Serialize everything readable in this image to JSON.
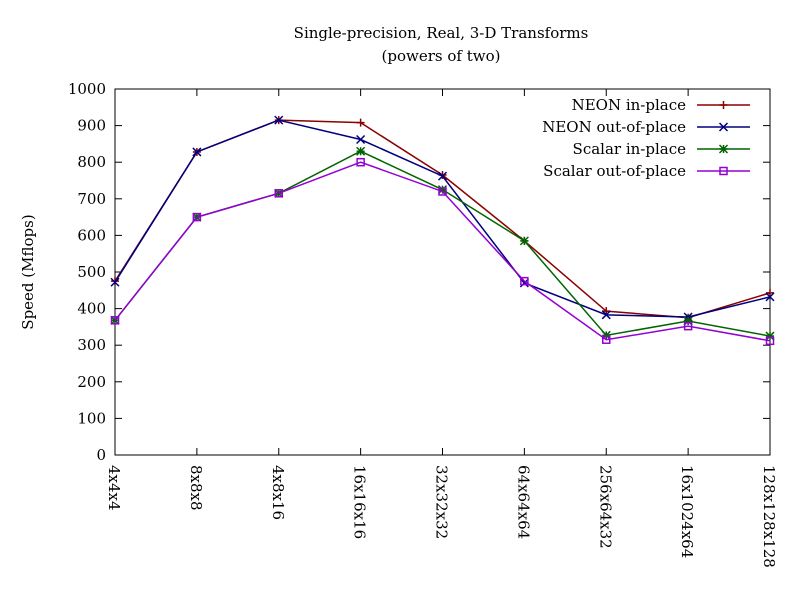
{
  "chart_data": {
    "type": "line",
    "title": "Single-precision, Real, 3-D Transforms",
    "subtitle": "(powers of two)",
    "xlabel": "",
    "ylabel": "Speed (Mflops)",
    "ylim": [
      0,
      1000
    ],
    "yticks": [
      0,
      100,
      200,
      300,
      400,
      500,
      600,
      700,
      800,
      900,
      1000
    ],
    "grid": false,
    "legend_position": "top-right",
    "categories": [
      "4x4x4",
      "8x8x8",
      "4x8x16",
      "16x16x16",
      "32x32x32",
      "64x64x64",
      "256x64x32",
      "16x1024x64",
      "128x128x128"
    ],
    "series": [
      {
        "name": "NEON in-place",
        "color": "#8b0000",
        "marker": "plus",
        "values": [
          475,
          828,
          915,
          908,
          765,
          585,
          393,
          375,
          443
        ]
      },
      {
        "name": "NEON out-of-place",
        "color": "#000080",
        "marker": "cross",
        "values": [
          472,
          828,
          915,
          862,
          762,
          470,
          383,
          377,
          432
        ]
      },
      {
        "name": "Scalar in-place",
        "color": "#006400",
        "marker": "star",
        "values": [
          368,
          650,
          715,
          830,
          725,
          585,
          327,
          366,
          325
        ]
      },
      {
        "name": "Scalar out-of-place",
        "color": "#9400d3",
        "marker": "square",
        "values": [
          368,
          650,
          715,
          800,
          720,
          475,
          315,
          352,
          312
        ]
      }
    ]
  }
}
